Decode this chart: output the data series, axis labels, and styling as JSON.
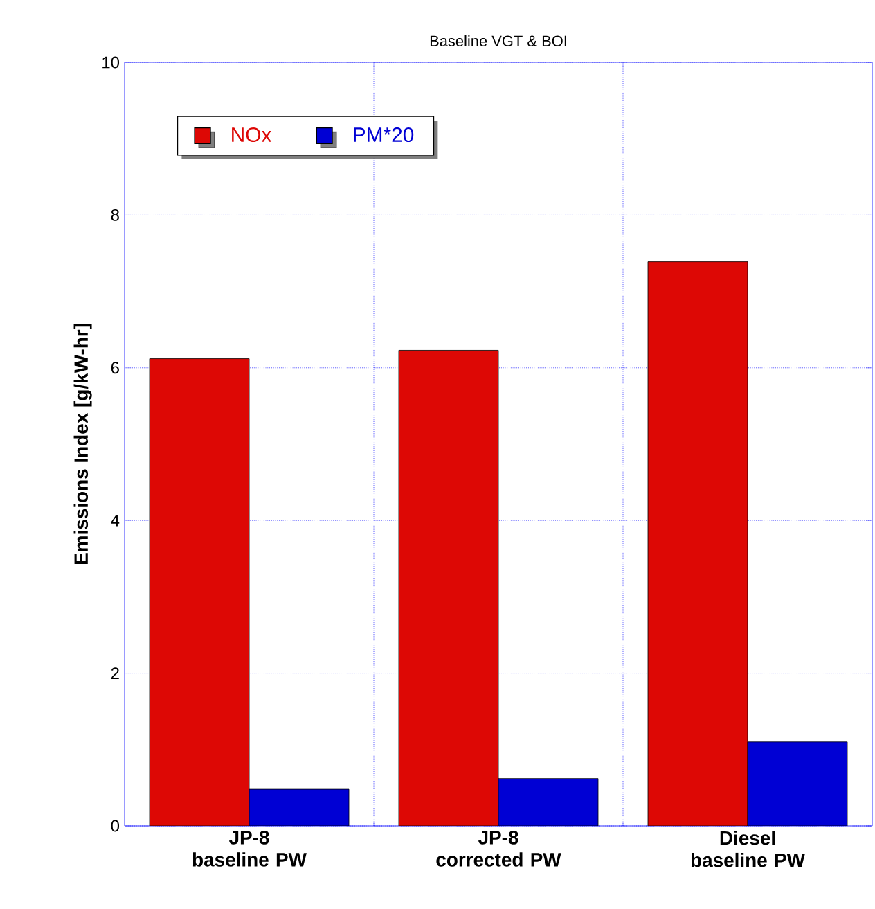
{
  "chart_data": {
    "type": "bar",
    "title": "Baseline VGT & BOI",
    "ylabel": "Emissions Index [g/kW-hr]",
    "categories": [
      "JP-8 baseline PW",
      "JP-8 corrected PW",
      "Diesel baseline PW"
    ],
    "series": [
      {
        "name": "NOx",
        "color": "#dd0805",
        "values": [
          6.12,
          6.23,
          7.39
        ]
      },
      {
        "name": "PM*20",
        "color": "#0000d4",
        "values": [
          0.48,
          0.62,
          1.1
        ]
      }
    ],
    "ylim": [
      0,
      10
    ],
    "yticks": [
      0,
      2,
      4,
      6,
      8,
      10
    ],
    "grid": true,
    "legend": "top left"
  }
}
